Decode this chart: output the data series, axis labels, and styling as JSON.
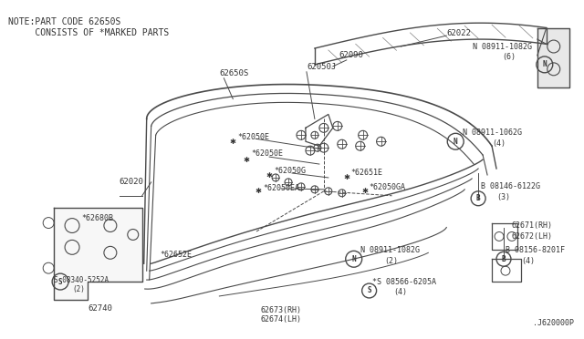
{
  "bg_color": "#ffffff",
  "line_color": "#4a4a4a",
  "text_color": "#333333",
  "title_note_line1": "NOTE:PART CODE 62650S",
  "title_note_line2": "     CONSISTS OF *MARKED PARTS",
  "diagram_id": ".J620000P",
  "fig_w": 6.4,
  "fig_h": 3.72,
  "dpi": 100
}
